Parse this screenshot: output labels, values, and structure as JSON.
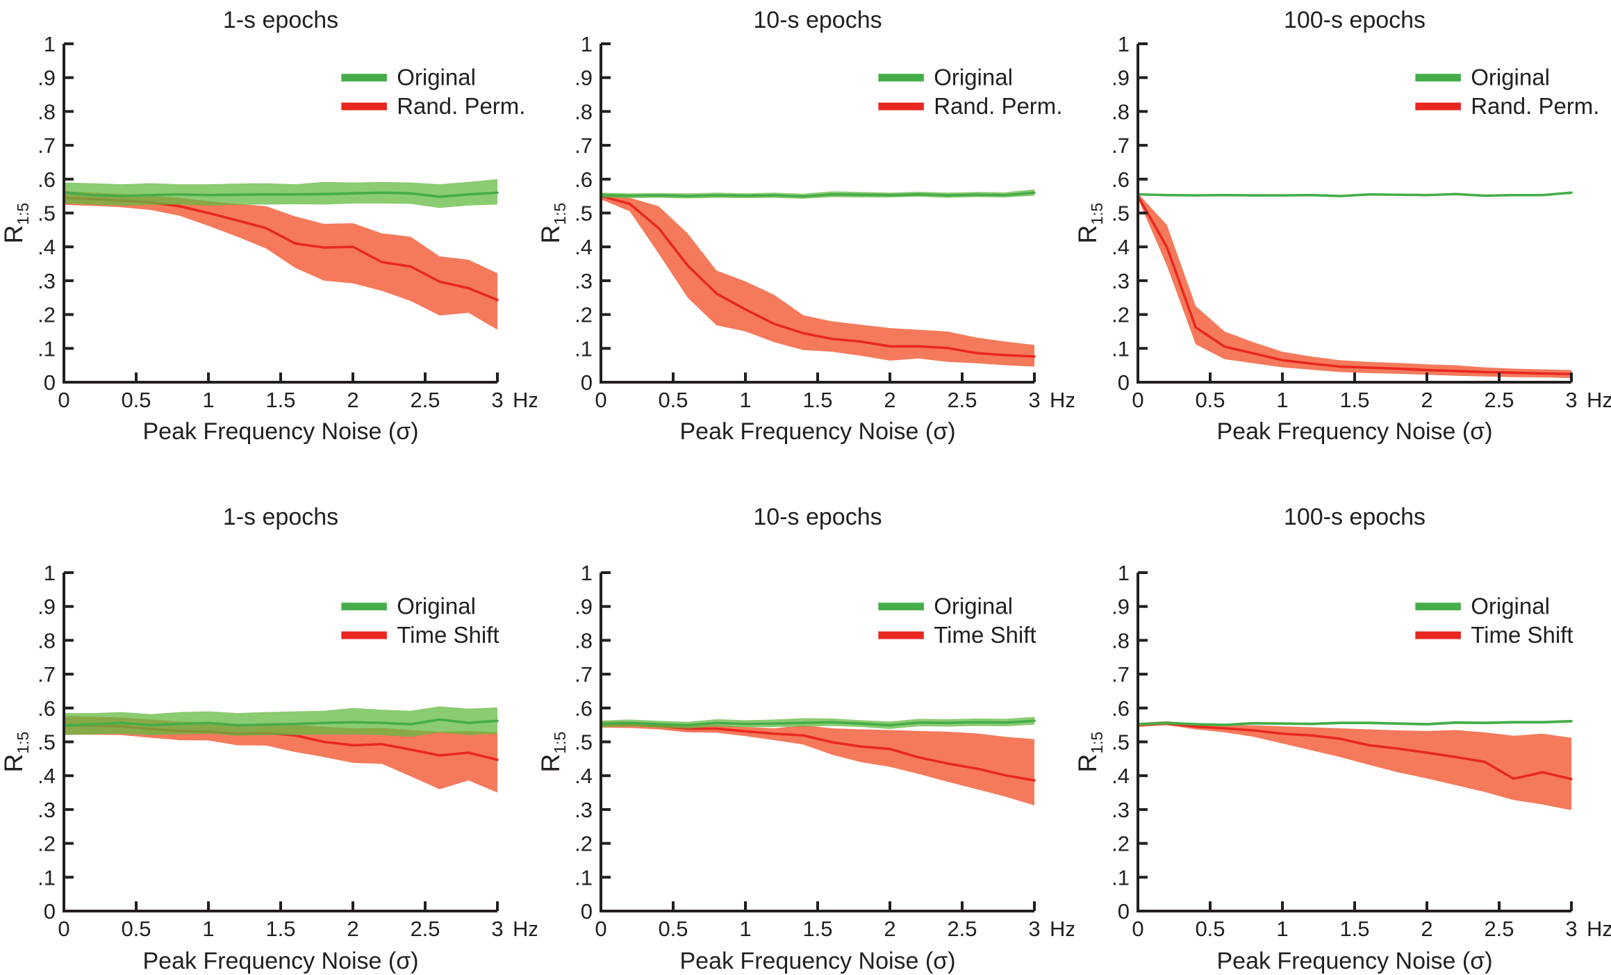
{
  "figure_background": "#ffffff",
  "axes": {
    "xlabel": "Peak Frequency Noise (σ)",
    "x_unit": "Hz",
    "ylabel": "R",
    "ylabel_sub": "1:5",
    "xlim": [
      0,
      3
    ],
    "ylim": [
      0,
      1
    ],
    "grid": false,
    "xticks": [
      {
        "v": 0,
        "label": "0"
      },
      {
        "v": 0.5,
        "label": "0.5"
      },
      {
        "v": 1,
        "label": "1"
      },
      {
        "v": 1.5,
        "label": "1.5"
      },
      {
        "v": 2,
        "label": "2"
      },
      {
        "v": 2.5,
        "label": "2.5"
      },
      {
        "v": 3,
        "label": "3"
      }
    ],
    "yticks": [
      {
        "v": 0,
        "label": "0"
      },
      {
        "v": 0.1,
        "label": ".1"
      },
      {
        "v": 0.2,
        "label": ".2"
      },
      {
        "v": 0.3,
        "label": ".3"
      },
      {
        "v": 0.4,
        "label": ".4"
      },
      {
        "v": 0.5,
        "label": ".5"
      },
      {
        "v": 0.6,
        "label": ".6"
      },
      {
        "v": 0.7,
        "label": ".7"
      },
      {
        "v": 0.8,
        "label": ".8"
      },
      {
        "v": 0.9,
        "label": ".9"
      },
      {
        "v": 1,
        "label": "1"
      }
    ]
  },
  "colors": {
    "green_line": "#44ad49",
    "green_band": "rgba(100,185,65,0.75)",
    "red_line": "#e8271f",
    "red_band": "#f47a5b",
    "axis": "#231f20"
  },
  "legend_position": "upper right inside",
  "chart_data": [
    {
      "type": "line",
      "title": "1-s epochs",
      "x": [
        0,
        0.2,
        0.4,
        0.6,
        0.8,
        1.0,
        1.2,
        1.4,
        1.6,
        1.8,
        2.0,
        2.2,
        2.4,
        2.6,
        2.8,
        3.0
      ],
      "series": [
        {
          "name": "Original",
          "color": "#44ad49",
          "band_fill": "rgba(100,185,65,0.75)",
          "center": [
            0.56,
            0.553,
            0.55,
            0.553,
            0.555,
            0.553,
            0.554,
            0.555,
            0.555,
            0.556,
            0.558,
            0.56,
            0.558,
            0.548,
            0.555,
            0.56
          ],
          "upper": [
            0.59,
            0.588,
            0.585,
            0.588,
            0.585,
            0.585,
            0.587,
            0.588,
            0.585,
            0.592,
            0.59,
            0.592,
            0.59,
            0.585,
            0.592,
            0.6
          ],
          "lower": [
            0.528,
            0.525,
            0.522,
            0.524,
            0.525,
            0.522,
            0.524,
            0.525,
            0.526,
            0.525,
            0.528,
            0.528,
            0.527,
            0.515,
            0.522,
            0.525
          ]
        },
        {
          "name": "Rand. Perm.",
          "color": "#e8271f",
          "band_fill": "#f47a5b",
          "center": [
            0.545,
            0.541,
            0.537,
            0.531,
            0.52,
            0.5,
            0.478,
            0.455,
            0.41,
            0.398,
            0.4,
            0.355,
            0.342,
            0.297,
            0.278,
            0.243
          ],
          "upper": [
            0.565,
            0.56,
            0.556,
            0.551,
            0.545,
            0.535,
            0.527,
            0.52,
            0.49,
            0.468,
            0.47,
            0.44,
            0.43,
            0.372,
            0.362,
            0.322
          ],
          "lower": [
            0.524,
            0.521,
            0.517,
            0.509,
            0.492,
            0.462,
            0.43,
            0.395,
            0.338,
            0.3,
            0.292,
            0.27,
            0.24,
            0.197,
            0.205,
            0.155
          ]
        }
      ]
    },
    {
      "type": "line",
      "title": "10-s epochs",
      "x": [
        0,
        0.2,
        0.4,
        0.6,
        0.8,
        1.0,
        1.2,
        1.4,
        1.6,
        1.8,
        2.0,
        2.2,
        2.4,
        2.6,
        2.8,
        3.0
      ],
      "series": [
        {
          "name": "Original",
          "color": "#44ad49",
          "band_fill": "rgba(100,185,65,0.75)",
          "center": [
            0.553,
            0.551,
            0.552,
            0.55,
            0.552,
            0.551,
            0.552,
            0.549,
            0.555,
            0.554,
            0.553,
            0.555,
            0.552,
            0.554,
            0.553,
            0.56
          ],
          "upper": [
            0.56,
            0.558,
            0.559,
            0.558,
            0.56,
            0.558,
            0.56,
            0.557,
            0.564,
            0.562,
            0.56,
            0.563,
            0.56,
            0.562,
            0.561,
            0.57
          ],
          "lower": [
            0.546,
            0.544,
            0.545,
            0.543,
            0.545,
            0.544,
            0.545,
            0.542,
            0.547,
            0.546,
            0.546,
            0.548,
            0.545,
            0.547,
            0.546,
            0.551
          ]
        },
        {
          "name": "Rand. Perm.",
          "color": "#e8271f",
          "band_fill": "#f47a5b",
          "center": [
            0.55,
            0.527,
            0.455,
            0.345,
            0.262,
            0.215,
            0.172,
            0.145,
            0.128,
            0.12,
            0.106,
            0.106,
            0.101,
            0.086,
            0.08,
            0.076
          ],
          "upper": [
            0.56,
            0.545,
            0.52,
            0.44,
            0.33,
            0.298,
            0.258,
            0.198,
            0.18,
            0.17,
            0.16,
            0.155,
            0.15,
            0.132,
            0.12,
            0.11
          ],
          "lower": [
            0.54,
            0.505,
            0.38,
            0.25,
            0.168,
            0.15,
            0.118,
            0.095,
            0.09,
            0.078,
            0.064,
            0.07,
            0.06,
            0.056,
            0.05,
            0.046
          ]
        }
      ]
    },
    {
      "type": "line",
      "title": "100-s epochs",
      "x": [
        0,
        0.2,
        0.4,
        0.6,
        0.8,
        1.0,
        1.2,
        1.4,
        1.6,
        1.8,
        2.0,
        2.2,
        2.4,
        2.6,
        2.8,
        3.0
      ],
      "series": [
        {
          "name": "Original",
          "color": "#44ad49",
          "band_fill": "rgba(100,185,65,0.75)",
          "center": [
            0.555,
            0.553,
            0.552,
            0.553,
            0.552,
            0.552,
            0.553,
            0.55,
            0.555,
            0.554,
            0.553,
            0.556,
            0.551,
            0.553,
            0.553,
            0.56
          ],
          "upper": [
            0.558,
            0.556,
            0.555,
            0.556,
            0.555,
            0.555,
            0.556,
            0.553,
            0.558,
            0.557,
            0.556,
            0.559,
            0.554,
            0.556,
            0.556,
            0.564
          ],
          "lower": [
            0.552,
            0.55,
            0.549,
            0.55,
            0.549,
            0.549,
            0.55,
            0.547,
            0.552,
            0.551,
            0.55,
            0.553,
            0.548,
            0.55,
            0.55,
            0.556
          ]
        },
        {
          "name": "Rand. Perm.",
          "color": "#e8271f",
          "band_fill": "#f47a5b",
          "center": [
            0.55,
            0.4,
            0.162,
            0.105,
            0.085,
            0.065,
            0.055,
            0.046,
            0.043,
            0.04,
            0.036,
            0.033,
            0.03,
            0.028,
            0.026,
            0.024
          ],
          "upper": [
            0.558,
            0.465,
            0.225,
            0.15,
            0.118,
            0.09,
            0.076,
            0.065,
            0.06,
            0.057,
            0.053,
            0.05,
            0.044,
            0.04,
            0.038,
            0.036
          ],
          "lower": [
            0.542,
            0.345,
            0.112,
            0.068,
            0.056,
            0.044,
            0.037,
            0.03,
            0.027,
            0.025,
            0.022,
            0.019,
            0.017,
            0.015,
            0.014,
            0.012
          ]
        }
      ]
    },
    {
      "type": "line",
      "title": "1-s epochs",
      "x": [
        0,
        0.2,
        0.4,
        0.6,
        0.8,
        1.0,
        1.2,
        1.4,
        1.6,
        1.8,
        2.0,
        2.2,
        2.4,
        2.6,
        2.8,
        3.0
      ],
      "series": [
        {
          "name": "Original",
          "color": "#44ad49",
          "band_fill": "rgba(100,185,65,0.75)",
          "center": [
            0.548,
            0.552,
            0.556,
            0.549,
            0.553,
            0.556,
            0.549,
            0.551,
            0.553,
            0.556,
            0.558,
            0.556,
            0.552,
            0.566,
            0.556,
            0.562
          ],
          "upper": [
            0.585,
            0.585,
            0.588,
            0.582,
            0.588,
            0.59,
            0.585,
            0.588,
            0.59,
            0.592,
            0.6,
            0.595,
            0.592,
            0.605,
            0.598,
            0.602
          ],
          "lower": [
            0.52,
            0.522,
            0.524,
            0.52,
            0.522,
            0.524,
            0.518,
            0.52,
            0.52,
            0.522,
            0.522,
            0.52,
            0.515,
            0.528,
            0.52,
            0.524
          ]
        },
        {
          "name": "Time Shift",
          "color": "#e8271f",
          "band_fill": "#f47a5b",
          "center": [
            0.549,
            0.548,
            0.546,
            0.538,
            0.532,
            0.53,
            0.524,
            0.526,
            0.519,
            0.5,
            0.49,
            0.493,
            0.477,
            0.46,
            0.468,
            0.447
          ],
          "upper": [
            0.576,
            0.574,
            0.572,
            0.566,
            0.56,
            0.557,
            0.553,
            0.554,
            0.55,
            0.545,
            0.54,
            0.541,
            0.535,
            0.53,
            0.532,
            0.528
          ],
          "lower": [
            0.521,
            0.521,
            0.52,
            0.512,
            0.505,
            0.504,
            0.49,
            0.489,
            0.47,
            0.455,
            0.438,
            0.435,
            0.398,
            0.36,
            0.386,
            0.35
          ]
        }
      ]
    },
    {
      "type": "line",
      "title": "10-s epochs",
      "x": [
        0,
        0.2,
        0.4,
        0.6,
        0.8,
        1.0,
        1.2,
        1.4,
        1.6,
        1.8,
        2.0,
        2.2,
        2.4,
        2.6,
        2.8,
        3.0
      ],
      "series": [
        {
          "name": "Original",
          "color": "#44ad49",
          "band_fill": "rgba(100,185,65,0.75)",
          "center": [
            0.553,
            0.556,
            0.552,
            0.549,
            0.556,
            0.553,
            0.554,
            0.556,
            0.558,
            0.554,
            0.549,
            0.557,
            0.556,
            0.558,
            0.557,
            0.562
          ],
          "upper": [
            0.563,
            0.566,
            0.562,
            0.559,
            0.567,
            0.564,
            0.566,
            0.57,
            0.569,
            0.564,
            0.56,
            0.568,
            0.567,
            0.569,
            0.568,
            0.574
          ],
          "lower": [
            0.543,
            0.546,
            0.542,
            0.539,
            0.546,
            0.543,
            0.544,
            0.545,
            0.547,
            0.544,
            0.538,
            0.546,
            0.545,
            0.547,
            0.546,
            0.551
          ]
        },
        {
          "name": "Time Shift",
          "color": "#e8271f",
          "band_fill": "#f47a5b",
          "center": [
            0.551,
            0.551,
            0.547,
            0.539,
            0.539,
            0.531,
            0.524,
            0.519,
            0.499,
            0.486,
            0.479,
            0.454,
            0.436,
            0.421,
            0.401,
            0.386
          ],
          "upper": [
            0.56,
            0.56,
            0.556,
            0.549,
            0.55,
            0.544,
            0.54,
            0.549,
            0.54,
            0.537,
            0.535,
            0.532,
            0.53,
            0.525,
            0.515,
            0.508
          ],
          "lower": [
            0.542,
            0.541,
            0.537,
            0.528,
            0.527,
            0.517,
            0.505,
            0.492,
            0.462,
            0.44,
            0.426,
            0.405,
            0.382,
            0.36,
            0.338,
            0.312
          ]
        }
      ]
    },
    {
      "type": "line",
      "title": "100-s epochs",
      "x": [
        0,
        0.2,
        0.4,
        0.6,
        0.8,
        1.0,
        1.2,
        1.4,
        1.6,
        1.8,
        2.0,
        2.2,
        2.4,
        2.6,
        2.8,
        3.0
      ],
      "series": [
        {
          "name": "Original",
          "color": "#44ad49",
          "band_fill": "rgba(100,185,65,0.75)",
          "center": [
            0.552,
            0.556,
            0.552,
            0.55,
            0.555,
            0.554,
            0.553,
            0.556,
            0.556,
            0.554,
            0.552,
            0.557,
            0.556,
            0.558,
            0.558,
            0.561
          ],
          "upper": [
            0.556,
            0.56,
            0.556,
            0.554,
            0.559,
            0.558,
            0.557,
            0.56,
            0.56,
            0.558,
            0.556,
            0.561,
            0.56,
            0.562,
            0.562,
            0.565
          ],
          "lower": [
            0.548,
            0.552,
            0.548,
            0.546,
            0.551,
            0.55,
            0.549,
            0.552,
            0.552,
            0.55,
            0.548,
            0.553,
            0.552,
            0.554,
            0.554,
            0.557
          ]
        },
        {
          "name": "Time Shift",
          "color": "#e8271f",
          "band_fill": "#f47a5b",
          "center": [
            0.55,
            0.555,
            0.545,
            0.54,
            0.534,
            0.524,
            0.519,
            0.509,
            0.49,
            0.48,
            0.468,
            0.455,
            0.441,
            0.391,
            0.41,
            0.39
          ],
          "upper": [
            0.556,
            0.561,
            0.551,
            0.549,
            0.549,
            0.546,
            0.543,
            0.54,
            0.537,
            0.534,
            0.532,
            0.535,
            0.528,
            0.518,
            0.524,
            0.512
          ],
          "lower": [
            0.544,
            0.549,
            0.537,
            0.528,
            0.515,
            0.495,
            0.475,
            0.455,
            0.432,
            0.41,
            0.392,
            0.372,
            0.352,
            0.328,
            0.315,
            0.298
          ]
        }
      ]
    }
  ]
}
